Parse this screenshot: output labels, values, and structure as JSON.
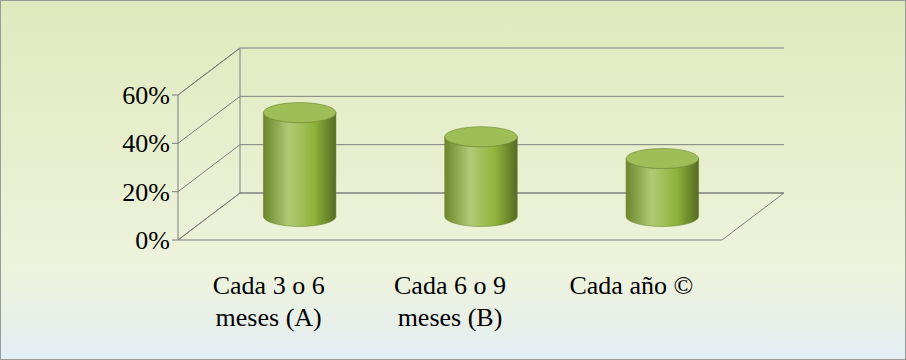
{
  "chart_data": {
    "type": "bar",
    "categories": [
      "Cada 3 o 6 meses (A)",
      "Cada 6 o 9 meses (B)",
      "Cada año ©"
    ],
    "values": [
      43,
      33,
      24
    ],
    "color": "#8fb33a",
    "ylim": [
      0,
      60
    ],
    "yticks": [
      {
        "value": 0,
        "label": "0%"
      },
      {
        "value": 20,
        "label": "20%"
      },
      {
        "value": 40,
        "label": "40%"
      },
      {
        "value": 60,
        "label": "60%"
      }
    ],
    "grid": true
  }
}
